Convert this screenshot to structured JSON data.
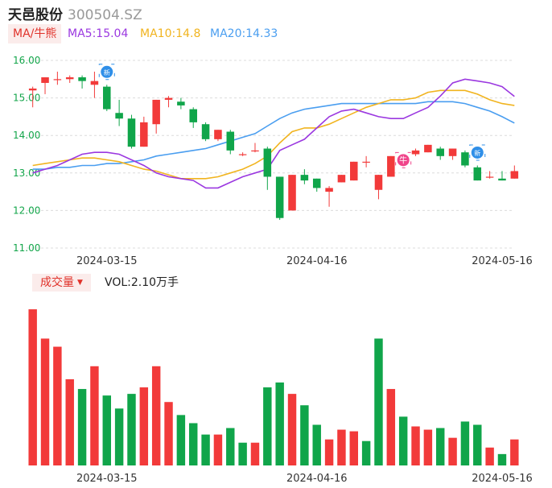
{
  "header": {
    "name": "天邑股份",
    "code": "300504.SZ"
  },
  "legend": {
    "ma_tag": "MA/牛熊",
    "ma5": "MA5:15.04",
    "ma10": "MA10:14.8",
    "ma20": "MA20:14.33"
  },
  "volume_panel": {
    "tag": "成交量",
    "vol_text": "VOL:2.10万手"
  },
  "colors": {
    "up": "#f23a3a",
    "down": "#10a54a",
    "ma5": "#9b38e0",
    "ma10": "#f1b41f",
    "ma20": "#4a9ef0",
    "grid": "#dcdcdc",
    "axis_text": "#13a54a"
  },
  "chart_data": [
    {
      "type": "candlestick",
      "ylim": [
        11.0,
        16.0
      ],
      "yticks": [
        "16.00",
        "15.00",
        "14.00",
        "13.00",
        "12.00",
        "11.00"
      ],
      "x_tick_labels": [
        {
          "index": 6,
          "label": "2024-03-15"
        },
        {
          "index": 23,
          "label": "2024-04-16"
        },
        {
          "index": 38,
          "label": "2024-05-16"
        }
      ],
      "markers": [
        {
          "index": 6,
          "label": "新"
        },
        {
          "index": 30,
          "label": "牛"
        },
        {
          "index": 36,
          "label": "新"
        }
      ],
      "candles": [
        {
          "o": 15.2,
          "h": 15.3,
          "l": 14.75,
          "c": 15.25
        },
        {
          "o": 15.4,
          "h": 15.55,
          "l": 15.1,
          "c": 15.55
        },
        {
          "o": 15.5,
          "h": 15.7,
          "l": 15.35,
          "c": 15.5
        },
        {
          "o": 15.5,
          "h": 15.6,
          "l": 15.4,
          "c": 15.55
        },
        {
          "o": 15.55,
          "h": 15.6,
          "l": 15.25,
          "c": 15.45
        },
        {
          "o": 15.35,
          "h": 15.7,
          "l": 15.0,
          "c": 15.45
        },
        {
          "o": 15.3,
          "h": 15.35,
          "l": 14.65,
          "c": 14.7
        },
        {
          "o": 14.6,
          "h": 14.95,
          "l": 14.25,
          "c": 14.45
        },
        {
          "o": 14.45,
          "h": 14.55,
          "l": 13.65,
          "c": 13.7
        },
        {
          "o": 13.7,
          "h": 14.5,
          "l": 13.7,
          "c": 14.35
        },
        {
          "o": 14.3,
          "h": 14.95,
          "l": 14.05,
          "c": 14.95
        },
        {
          "o": 14.95,
          "h": 15.05,
          "l": 14.75,
          "c": 15.0
        },
        {
          "o": 14.9,
          "h": 15.0,
          "l": 14.7,
          "c": 14.8
        },
        {
          "o": 14.7,
          "h": 14.75,
          "l": 14.2,
          "c": 14.35
        },
        {
          "o": 14.3,
          "h": 14.35,
          "l": 13.85,
          "c": 13.9
        },
        {
          "o": 13.9,
          "h": 14.15,
          "l": 13.85,
          "c": 14.15
        },
        {
          "o": 14.1,
          "h": 14.15,
          "l": 13.5,
          "c": 13.6
        },
        {
          "o": 13.5,
          "h": 13.55,
          "l": 13.45,
          "c": 13.5
        },
        {
          "o": 13.6,
          "h": 13.8,
          "l": 13.55,
          "c": 13.6
        },
        {
          "o": 13.65,
          "h": 13.7,
          "l": 12.55,
          "c": 12.9
        },
        {
          "o": 12.9,
          "h": 12.9,
          "l": 11.75,
          "c": 11.8
        },
        {
          "o": 12.0,
          "h": 12.95,
          "l": 12.0,
          "c": 12.95
        },
        {
          "o": 12.95,
          "h": 13.1,
          "l": 12.7,
          "c": 12.8
        },
        {
          "o": 12.85,
          "h": 12.85,
          "l": 12.5,
          "c": 12.6
        },
        {
          "o": 12.5,
          "h": 12.65,
          "l": 12.1,
          "c": 12.6
        },
        {
          "o": 12.75,
          "h": 12.95,
          "l": 12.75,
          "c": 12.95
        },
        {
          "o": 12.8,
          "h": 13.3,
          "l": 12.8,
          "c": 13.3
        },
        {
          "o": 13.3,
          "h": 13.45,
          "l": 13.15,
          "c": 13.3
        },
        {
          "o": 12.55,
          "h": 12.95,
          "l": 12.3,
          "c": 12.95
        },
        {
          "o": 12.9,
          "h": 13.45,
          "l": 12.9,
          "c": 13.45
        },
        {
          "o": 13.45,
          "h": 13.5,
          "l": 13.3,
          "c": 13.4
        },
        {
          "o": 13.5,
          "h": 13.65,
          "l": 13.45,
          "c": 13.6
        },
        {
          "o": 13.55,
          "h": 13.75,
          "l": 13.55,
          "c": 13.75
        },
        {
          "o": 13.65,
          "h": 13.7,
          "l": 13.35,
          "c": 13.45
        },
        {
          "o": 13.45,
          "h": 13.65,
          "l": 13.35,
          "c": 13.65
        },
        {
          "o": 13.55,
          "h": 13.6,
          "l": 13.15,
          "c": 13.2
        },
        {
          "o": 13.15,
          "h": 13.2,
          "l": 12.8,
          "c": 12.8
        },
        {
          "o": 12.9,
          "h": 13.05,
          "l": 12.85,
          "c": 12.9
        },
        {
          "o": 12.85,
          "h": 13.05,
          "l": 12.8,
          "c": 12.8
        },
        {
          "o": 12.85,
          "h": 13.2,
          "l": 12.85,
          "c": 13.05
        }
      ],
      "ma5": [
        13.0,
        13.1,
        13.2,
        13.35,
        13.5,
        13.55,
        13.55,
        13.5,
        13.35,
        13.2,
        13.0,
        12.9,
        12.85,
        12.8,
        12.6,
        12.6,
        12.75,
        12.9,
        13.0,
        13.1,
        13.6,
        13.75,
        13.9,
        14.2,
        14.5,
        14.65,
        14.7,
        14.6,
        14.5,
        14.45,
        14.45,
        14.6,
        14.75,
        15.05,
        15.4,
        15.5,
        15.45,
        15.4,
        15.3,
        15.04
      ],
      "ma10": [
        13.2,
        13.25,
        13.3,
        13.35,
        13.4,
        13.4,
        13.35,
        13.3,
        13.2,
        13.1,
        13.05,
        12.95,
        12.85,
        12.85,
        12.85,
        12.9,
        13.0,
        13.1,
        13.25,
        13.45,
        13.8,
        14.1,
        14.2,
        14.2,
        14.3,
        14.45,
        14.6,
        14.75,
        14.85,
        14.95,
        14.95,
        15.0,
        15.15,
        15.2,
        15.2,
        15.2,
        15.1,
        14.95,
        14.85,
        14.8
      ],
      "ma20": [
        13.1,
        13.1,
        13.15,
        13.15,
        13.2,
        13.2,
        13.25,
        13.25,
        13.3,
        13.35,
        13.45,
        13.5,
        13.55,
        13.6,
        13.65,
        13.75,
        13.85,
        13.95,
        14.05,
        14.25,
        14.45,
        14.6,
        14.7,
        14.75,
        14.8,
        14.85,
        14.85,
        14.85,
        14.85,
        14.85,
        14.85,
        14.85,
        14.9,
        14.9,
        14.9,
        14.85,
        14.75,
        14.65,
        14.5,
        14.33
      ]
    },
    {
      "type": "bar",
      "name": "volume",
      "ylim": [
        0,
        1.0
      ],
      "values": [
        0.96,
        0.78,
        0.73,
        0.53,
        0.47,
        0.61,
        0.43,
        0.35,
        0.44,
        0.48,
        0.61,
        0.39,
        0.31,
        0.26,
        0.19,
        0.19,
        0.23,
        0.14,
        0.14,
        0.48,
        0.51,
        0.44,
        0.37,
        0.25,
        0.16,
        0.22,
        0.21,
        0.15,
        0.78,
        0.47,
        0.3,
        0.24,
        0.22,
        0.23,
        0.17,
        0.27,
        0.25,
        0.11,
        0.07,
        0.16
      ],
      "colors_up": [
        true,
        true,
        true,
        true,
        false,
        true,
        false,
        false,
        false,
        true,
        true,
        true,
        false,
        false,
        false,
        true,
        false,
        false,
        true,
        false,
        false,
        true,
        false,
        false,
        true,
        true,
        true,
        false,
        false,
        true,
        false,
        true,
        true,
        false,
        true,
        false,
        false,
        true,
        false,
        true
      ]
    }
  ]
}
